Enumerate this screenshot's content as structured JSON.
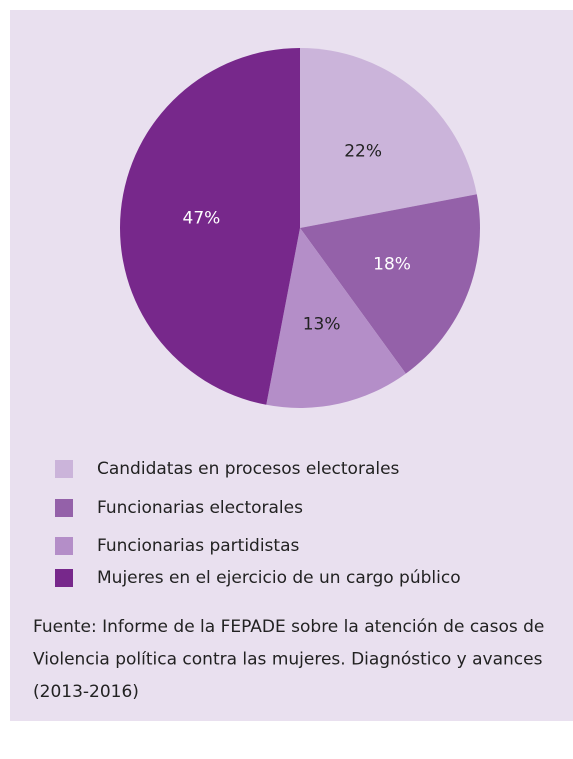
{
  "chart_data": {
    "type": "pie",
    "categories": [
      "Candidatas en procesos electorales",
      "Funcionarias electorales",
      "Funcionarias partidistas",
      "Mujeres en el ejercicio de un cargo público"
    ],
    "values": [
      22,
      18,
      13,
      47
    ],
    "value_labels": [
      "22%",
      "18%",
      "13%",
      "47%"
    ],
    "colors": [
      "#cbb4da",
      "#9461a9",
      "#b48ec8",
      "#77288b"
    ],
    "source": [
      "Fuente: Informe de la FEPADE sobre la atención de casos de",
      "Violencia política contra las mujeres. Diagnóstico y avances",
      "(2013-2016)"
    ]
  }
}
